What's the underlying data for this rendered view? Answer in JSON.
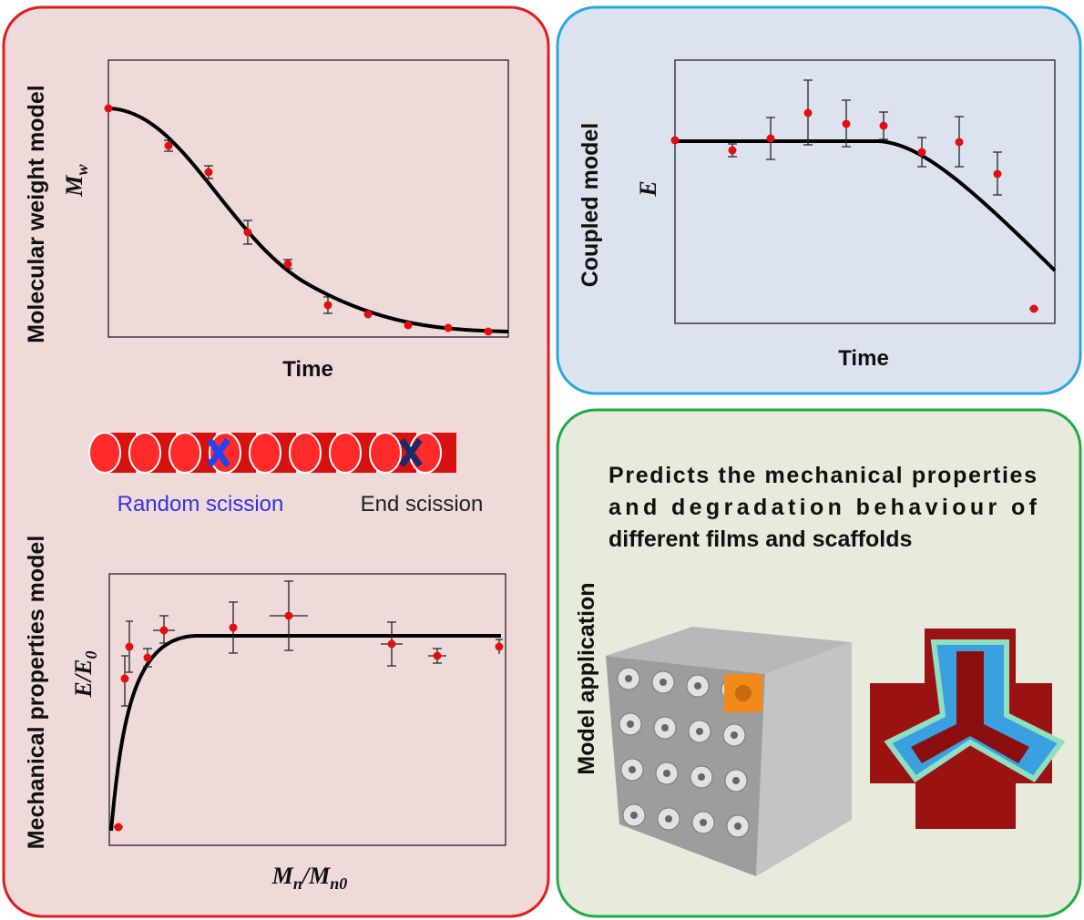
{
  "panels": {
    "molecular": {
      "title": "Molecular weight model",
      "x_label": "Time",
      "y_label": [
        "M",
        "w"
      ]
    },
    "scission": {
      "random": "Random scission",
      "end": "End scission"
    },
    "mechanical": {
      "title": "Mechanical properties model",
      "y_label": [
        "E/E",
        "0"
      ],
      "x_label": [
        "M",
        "n",
        "/M",
        "n0"
      ]
    },
    "coupled": {
      "title": "Coupled model",
      "x_label": "Time",
      "y_label": "E"
    },
    "application": {
      "title": "Model application",
      "lines": [
        "Predicts the mechanical properties",
        "and degradation behaviour of",
        "different films and scaffolds"
      ]
    }
  }
}
